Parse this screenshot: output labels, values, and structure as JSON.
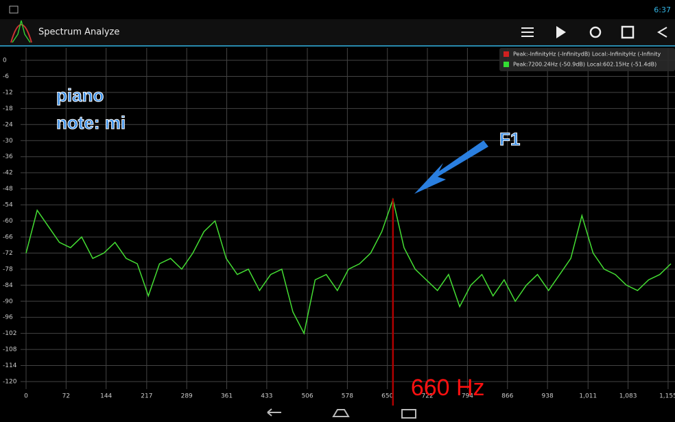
{
  "app": {
    "title": "Spectrum Analyze",
    "time": "6:37"
  },
  "chart_data": {
    "type": "line",
    "annotations": [
      "piano",
      "note: mi",
      "F1"
    ],
    "legend": [
      {
        "color": "#d02020",
        "text": "Peak:-InfinityHz (-InfinitydB)  Local:-InfinityHz (-Infinity"
      },
      {
        "color": "#33dd33",
        "text": "Peak:7200.24Hz (-50.9dB)  Local:602.15Hz (-51.4dB)"
      }
    ],
    "marker": {
      "x": 660,
      "color": "#b00000",
      "label": "660 Hz"
    },
    "x": [
      0,
      20,
      40,
      60,
      80,
      100,
      120,
      140,
      160,
      180,
      200,
      220,
      240,
      260,
      280,
      300,
      320,
      340,
      360,
      380,
      400,
      420,
      440,
      460,
      480,
      500,
      520,
      540,
      560,
      580,
      600,
      620,
      640,
      660,
      680,
      700,
      720,
      740,
      760,
      780,
      800,
      820,
      840,
      860,
      880,
      900,
      920,
      940,
      960,
      980,
      1000,
      1020,
      1040,
      1060,
      1080,
      1100,
      1120,
      1140,
      1160
    ],
    "series": [
      {
        "color": "#44dd33",
        "values": [
          -72,
          -56,
          -62,
          -68,
          -70,
          -66,
          -74,
          -72,
          -68,
          -74,
          -76,
          -88,
          -76,
          -74,
          -78,
          -72,
          -64,
          -60,
          -74,
          -80,
          -78,
          -86,
          -80,
          -78,
          -94,
          -102,
          -82,
          -80,
          -86,
          -78,
          -76,
          -72,
          -64,
          -52,
          -70,
          -78,
          -82,
          -86,
          -80,
          -92,
          -84,
          -80,
          -88,
          -82,
          -90,
          -84,
          -80,
          -86,
          -80,
          -74,
          -58,
          -72,
          -78,
          -80,
          -84,
          -86,
          -82,
          -80,
          -76
        ]
      }
    ],
    "xlim": [
      0,
      1160
    ],
    "ylim": [
      -120,
      0
    ],
    "xticks": [
      0,
      72,
      144,
      217,
      289,
      361,
      433,
      506,
      578,
      650,
      722,
      794,
      866,
      938,
      {
        "value": 1011,
        "label": "1,011"
      },
      {
        "value": 1083,
        "label": "1,083"
      },
      {
        "value": 1155,
        "label": "1,155"
      }
    ],
    "yticks": [
      0,
      -6,
      -12,
      -18,
      -24,
      -30,
      -36,
      -42,
      -48,
      -54,
      -60,
      -66,
      -72,
      -78,
      -84,
      -90,
      -96,
      -102,
      -108,
      -114,
      -120
    ],
    "grid": true
  }
}
